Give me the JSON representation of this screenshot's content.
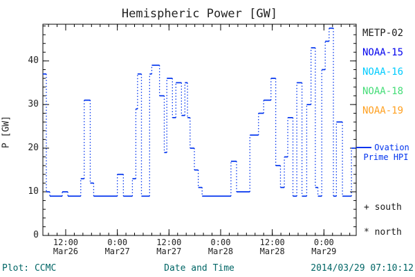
{
  "title": "Hemispheric Power [GW]",
  "legend": {
    "satellites": [
      {
        "label": "METP-02",
        "color": "#1a1a1a"
      },
      {
        "label": "NOAA-15",
        "color": "#0000ee"
      },
      {
        "label": "NOAA-16",
        "color": "#00ccff"
      },
      {
        "label": "NOAA-18",
        "color": "#44dd77"
      },
      {
        "label": "NOAA-19",
        "color": "#ffa020"
      }
    ],
    "ovation": {
      "line1": "Ovation",
      "line2": "Prime HPI",
      "color": "#0033ee"
    }
  },
  "markers": {
    "south": "+ south",
    "north": "* north"
  },
  "footer": {
    "credit": "Plot: CCMC",
    "timestamp": "2014/03/29 07:10:12",
    "color": "#006666"
  },
  "chart_data": {
    "type": "line",
    "style": "step-dotted",
    "title": "Hemispheric Power [GW]",
    "xlabel": "Date and Time",
    "ylabel": "P [GW]",
    "line_color": "#0033ee",
    "xlim": [
      6.7,
      79.5
    ],
    "ylim": [
      0,
      48.4
    ],
    "x_unit": "hours since 2014-03-26 00:00",
    "grid": false,
    "x_major_ticks": [
      {
        "t": 12,
        "time": "12:00",
        "date": "Mar26"
      },
      {
        "t": 24,
        "time": "0:00",
        "date": "Mar27"
      },
      {
        "t": 36,
        "time": "12:00",
        "date": "Mar27"
      },
      {
        "t": 48,
        "time": "0:00",
        "date": "Mar28"
      },
      {
        "t": 60,
        "time": "12:00",
        "date": "Mar28"
      },
      {
        "t": 72,
        "time": "0:00",
        "date": "Mar29"
      }
    ],
    "x_minor_step": 2,
    "y_major_ticks": [
      0,
      10,
      20,
      30,
      40
    ],
    "y_minor_step": 2,
    "t_end": 79.3,
    "series": [
      {
        "name": "Ovation Prime HPI",
        "steps": [
          [
            6.7,
            37
          ],
          [
            7.5,
            10
          ],
          [
            8.3,
            9
          ],
          [
            11.2,
            10
          ],
          [
            12.5,
            9
          ],
          [
            15.5,
            13
          ],
          [
            16.3,
            31
          ],
          [
            17.7,
            12
          ],
          [
            18.5,
            9
          ],
          [
            24.0,
            14
          ],
          [
            25.4,
            9
          ],
          [
            27.5,
            13
          ],
          [
            28.3,
            29
          ],
          [
            28.7,
            37
          ],
          [
            29.6,
            9
          ],
          [
            31.5,
            37
          ],
          [
            32.0,
            39
          ],
          [
            33.8,
            32
          ],
          [
            34.9,
            19
          ],
          [
            35.5,
            36
          ],
          [
            36.8,
            27
          ],
          [
            37.6,
            35
          ],
          [
            38.9,
            27.5
          ],
          [
            39.7,
            35
          ],
          [
            40.3,
            27
          ],
          [
            40.9,
            20
          ],
          [
            41.9,
            15
          ],
          [
            42.8,
            11
          ],
          [
            43.7,
            9
          ],
          [
            50.4,
            17
          ],
          [
            51.7,
            10
          ],
          [
            54.8,
            23
          ],
          [
            56.8,
            28
          ],
          [
            58.0,
            31
          ],
          [
            59.7,
            36
          ],
          [
            60.8,
            16
          ],
          [
            61.9,
            11
          ],
          [
            62.8,
            18
          ],
          [
            63.6,
            27
          ],
          [
            64.8,
            9
          ],
          [
            65.7,
            35
          ],
          [
            66.9,
            9
          ],
          [
            68.0,
            30
          ],
          [
            69.0,
            43
          ],
          [
            70.0,
            11
          ],
          [
            70.6,
            9
          ],
          [
            71.5,
            38
          ],
          [
            72.3,
            44.5
          ],
          [
            73.2,
            47.5
          ],
          [
            74.2,
            9
          ],
          [
            74.9,
            26
          ],
          [
            76.3,
            9
          ],
          [
            78.4,
            20
          ]
        ]
      }
    ]
  }
}
